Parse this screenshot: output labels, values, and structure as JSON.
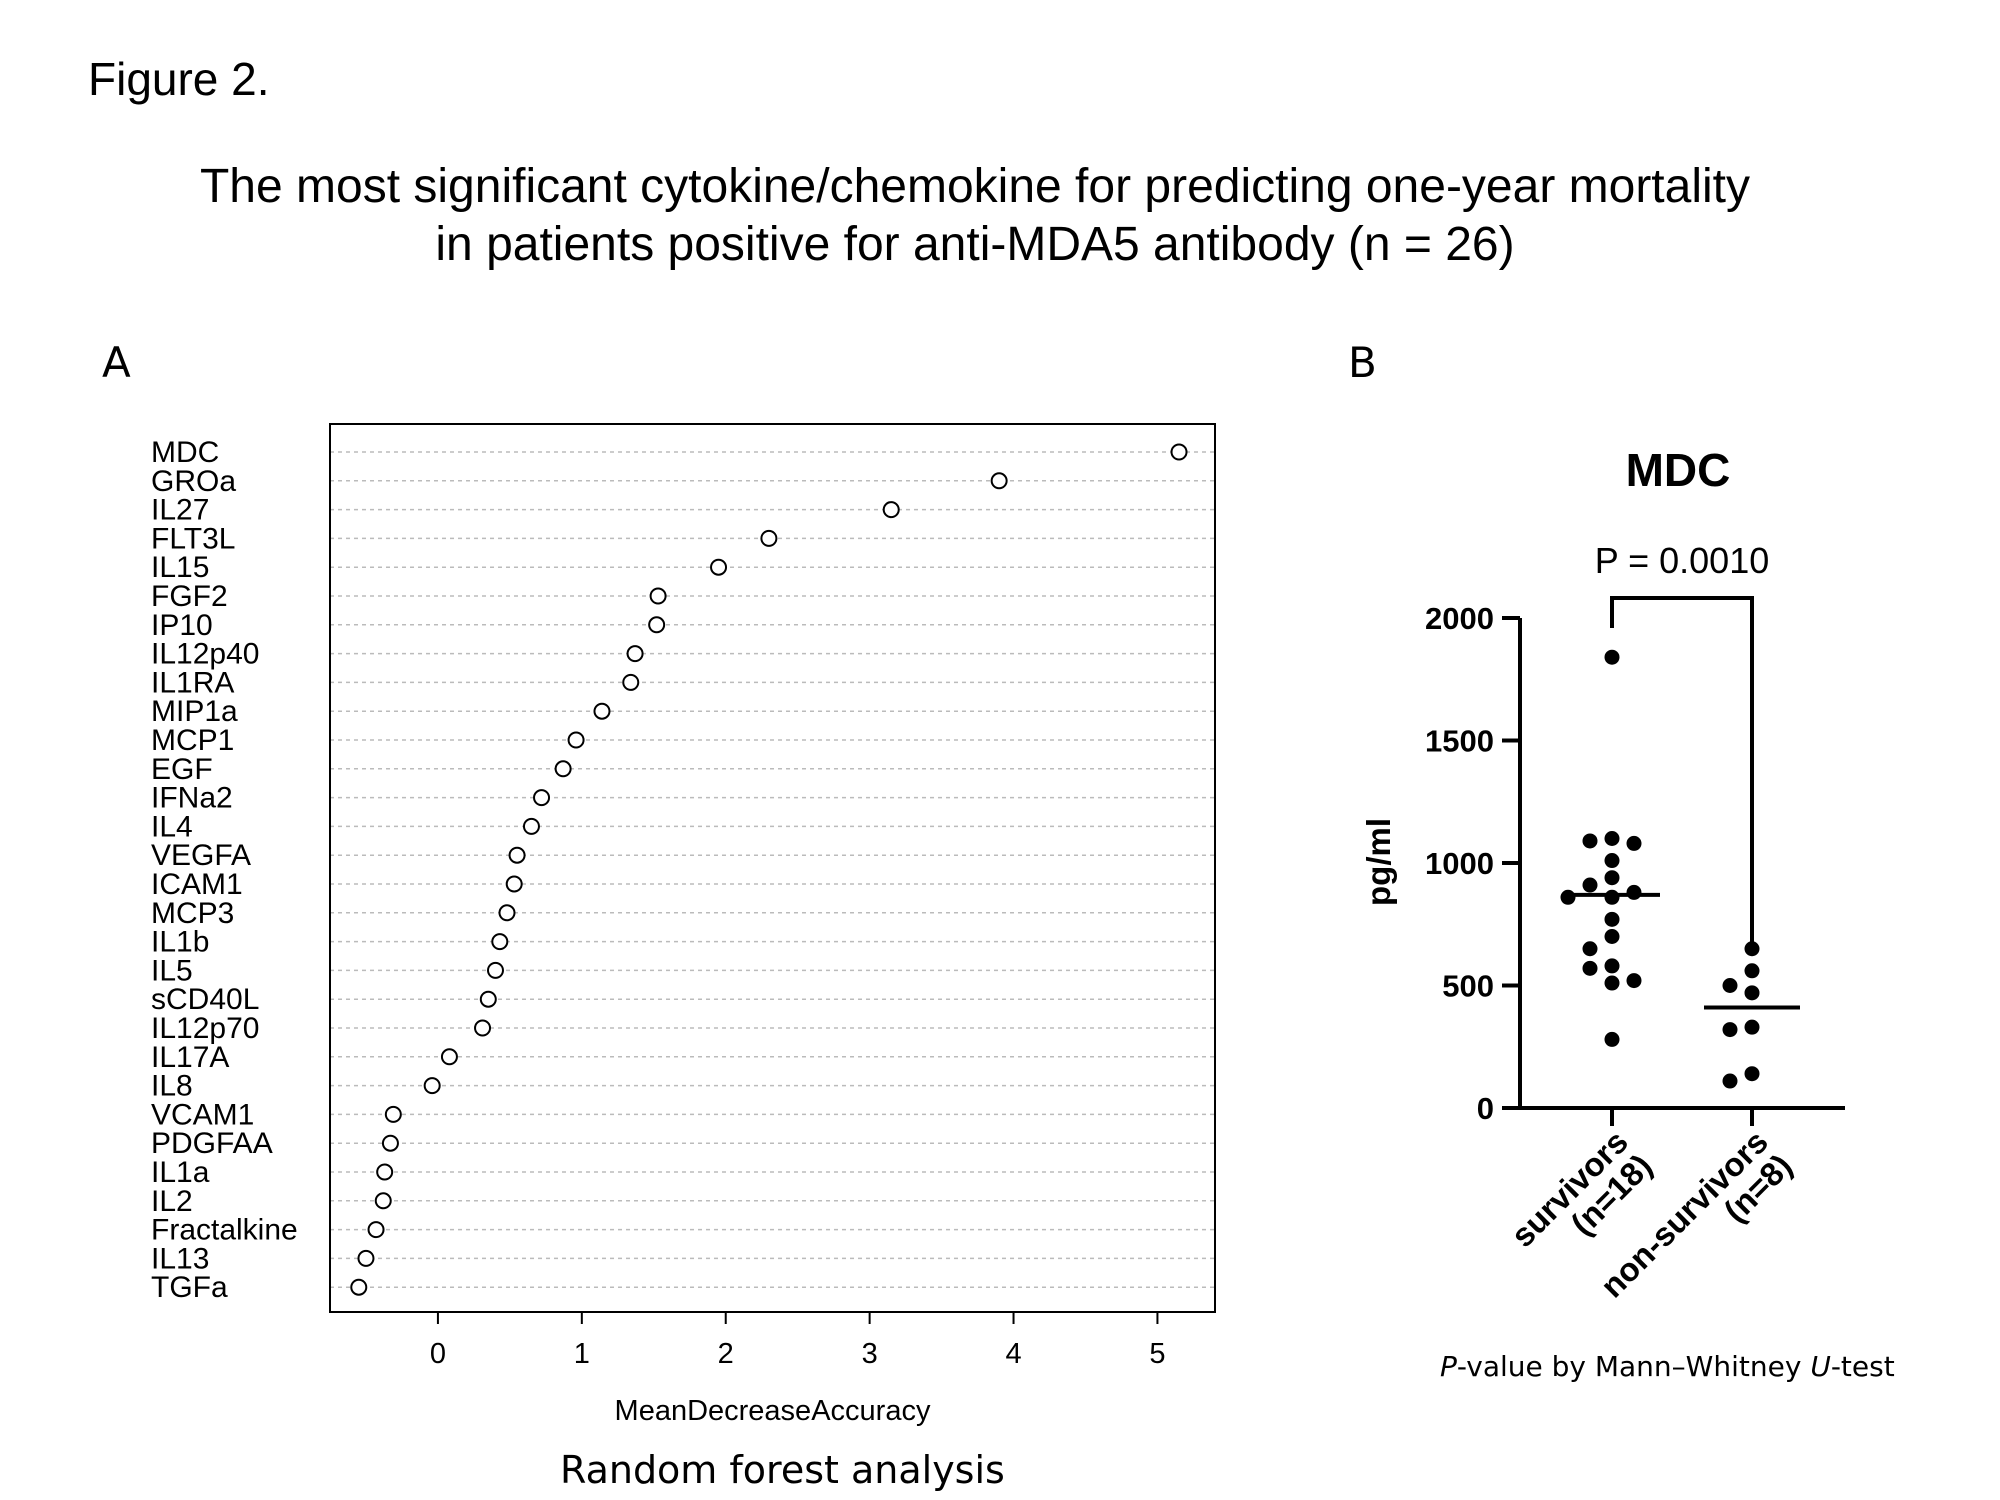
{
  "figure_label": "Figure 2.",
  "title_line1": "The most significant cytokine/chemokine for predicting one-year mortality",
  "title_line2": "in patients positive for anti-MDA5 antibody (n = 26)",
  "panel_a": {
    "letter": "A",
    "caption": "Random forest analysis"
  },
  "panel_b": {
    "letter": "B",
    "caption_p": "P",
    "caption_mid": "-value by Mann–Whitney ",
    "caption_u": "U",
    "caption_end": "-test"
  },
  "chart_data": [
    {
      "type": "scatter",
      "subtype": "dotchart",
      "xlabel": "MeanDecreaseAccuracy",
      "xlim": [
        -0.75,
        5.4
      ],
      "xticks": [
        0,
        1,
        2,
        3,
        4,
        5
      ],
      "grid": "horizontal dashed",
      "categories": [
        "MDC",
        "GROa",
        "IL27",
        "FLT3L",
        "IL15",
        "FGF2",
        "IP10",
        "IL12p40",
        "IL1RA",
        "MIP1a",
        "MCP1",
        "EGF",
        "IFNa2",
        "IL4",
        "VEGFA",
        "ICAM1",
        "MCP3",
        "IL1b",
        "IL5",
        "sCD40L",
        "IL12p70",
        "IL17A",
        "IL8",
        "VCAM1",
        "PDGFAA",
        "IL1a",
        "IL2",
        "Fractalkine",
        "IL13",
        "TGFa"
      ],
      "values": [
        5.15,
        3.9,
        3.15,
        2.3,
        1.95,
        1.53,
        1.52,
        1.37,
        1.34,
        1.14,
        0.96,
        0.87,
        0.72,
        0.65,
        0.55,
        0.53,
        0.48,
        0.43,
        0.4,
        0.35,
        0.31,
        0.08,
        -0.04,
        -0.31,
        -0.33,
        -0.37,
        -0.38,
        -0.43,
        -0.5,
        -0.55
      ]
    },
    {
      "type": "scatter",
      "subtype": "dot plot with median",
      "title": "MDC",
      "ylabel": "pg/ml",
      "ylim": [
        0,
        2000
      ],
      "yticks": [
        0,
        500,
        1000,
        1500,
        2000
      ],
      "annotation": "P = 0.0010",
      "groups": [
        {
          "name": "survivors (n=18)",
          "line1": "survivors",
          "line2": "(n=18)",
          "median": 870,
          "points": [
            1840,
            1100,
            1090,
            1080,
            1010,
            940,
            910,
            880,
            860,
            860,
            770,
            700,
            650,
            580,
            570,
            520,
            510,
            280
          ]
        },
        {
          "name": "non-survivors (n=8)",
          "line1": "non-survivors",
          "line2": "(n=8)",
          "median": 410,
          "points": [
            650,
            560,
            500,
            470,
            330,
            320,
            140,
            110
          ]
        }
      ]
    }
  ]
}
